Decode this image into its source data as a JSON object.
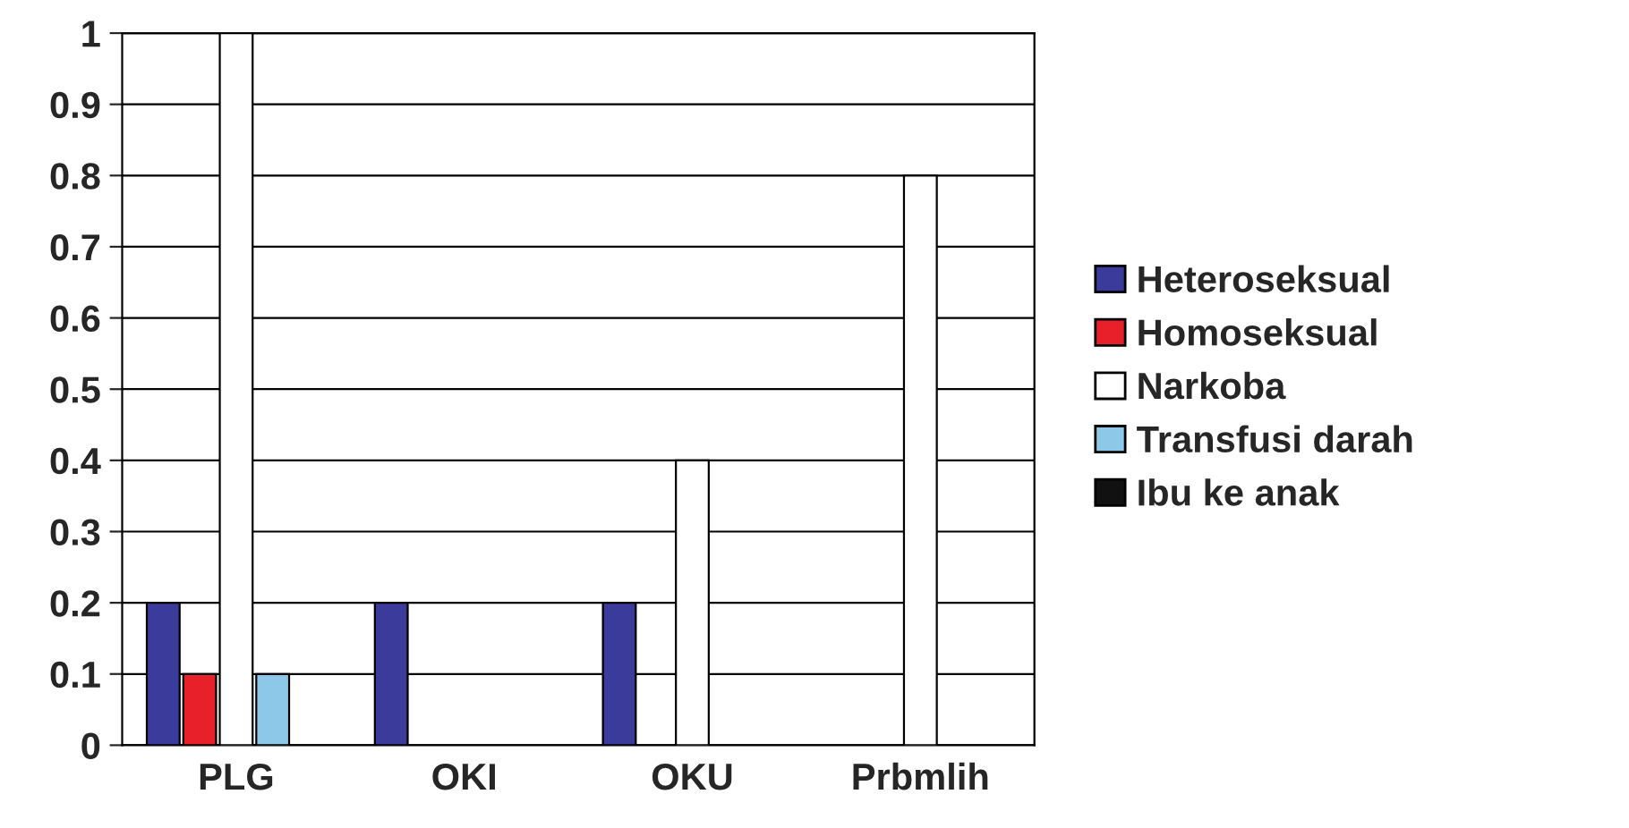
{
  "chart_data": {
    "type": "bar",
    "categories": [
      "PLG",
      "OKI",
      "OKU",
      "Prbmlih"
    ],
    "series": [
      {
        "name": "Heteroseksual",
        "color": "#3b3b9c",
        "values": [
          0.2,
          0.2,
          0.2,
          0
        ]
      },
      {
        "name": "Homoseksual",
        "color": "#e8202a",
        "values": [
          0.1,
          0,
          0,
          0
        ]
      },
      {
        "name": "Narkoba",
        "color": "#ffffff",
        "values": [
          1.0,
          0,
          0.4,
          0.8
        ]
      },
      {
        "name": "Transfusi darah",
        "color": "#8ec8e8",
        "values": [
          0.1,
          0,
          0,
          0
        ]
      },
      {
        "name": "Ibu ke anak",
        "color": "#111111",
        "values": [
          0,
          0,
          0,
          0
        ]
      }
    ],
    "ylim": [
      0,
      1
    ],
    "yticks": [
      0,
      0.1,
      0.2,
      0.3,
      0.4,
      0.5,
      0.6,
      0.7,
      0.8,
      0.9,
      1
    ],
    "grid": "y",
    "legend": "right"
  }
}
